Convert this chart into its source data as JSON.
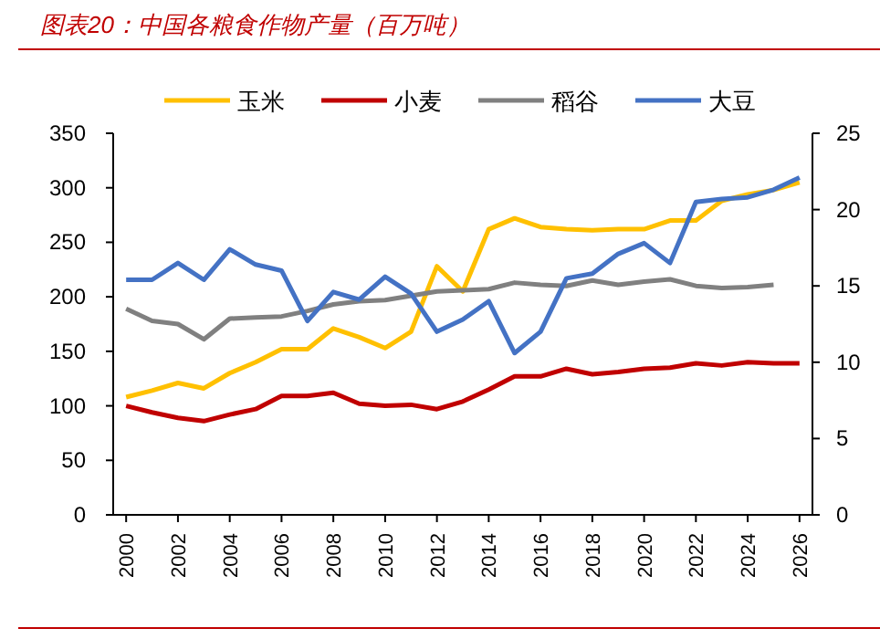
{
  "chart_data": {
    "type": "line",
    "title": "图表20：中国各粮食作物产量（百万吨）",
    "categories": [
      "2000",
      null,
      "2002",
      null,
      "2004",
      null,
      "2006",
      null,
      "2008",
      null,
      "2010",
      null,
      "2012",
      null,
      "2014",
      null,
      "2016",
      null,
      "2018",
      null,
      "2020",
      null,
      "2022",
      null,
      "2024",
      null,
      "2026"
    ],
    "series": [
      {
        "name": "玉米",
        "color": "#ffc000",
        "values": [
          108,
          114,
          121,
          116,
          130,
          140,
          152,
          152,
          171,
          163,
          153,
          168,
          228,
          205,
          262,
          272,
          264,
          262,
          261,
          262,
          262,
          270,
          270,
          288,
          294,
          298,
          305
        ]
      },
      {
        "name": "小麦",
        "color": "#c00000",
        "values": [
          100,
          94,
          89,
          86,
          92,
          97,
          109,
          109,
          112,
          102,
          100,
          101,
          97,
          104,
          115,
          127,
          127,
          134,
          129,
          131,
          134,
          135,
          139,
          137,
          140,
          139,
          139
        ]
      },
      {
        "name": "稻谷",
        "color": "#808080",
        "values": [
          189,
          178,
          175,
          161,
          180,
          181,
          182,
          187,
          193,
          196,
          197,
          201,
          205,
          206,
          207,
          213,
          211,
          210,
          215,
          211,
          214,
          216,
          210,
          208,
          209,
          211,
          null
        ]
      },
      {
        "name": "大豆",
        "color": "#4472c4",
        "axis": "y2",
        "values": [
          15.4,
          15.4,
          16.5,
          15.4,
          17.4,
          16.4,
          16.0,
          12.7,
          14.6,
          14.1,
          15.6,
          14.5,
          12.0,
          12.8,
          14.0,
          10.6,
          12.0,
          15.5,
          15.8,
          17.1,
          17.8,
          16.5,
          20.5,
          20.7,
          20.8,
          21.3,
          22.1
        ]
      }
    ],
    "ylim": [
      0,
      350
    ],
    "yticks": [
      0,
      50,
      100,
      150,
      200,
      250,
      300,
      350
    ],
    "y2lim": [
      0,
      25
    ],
    "y2ticks": [
      0,
      5,
      10,
      15,
      20,
      25
    ],
    "legend": "top"
  }
}
